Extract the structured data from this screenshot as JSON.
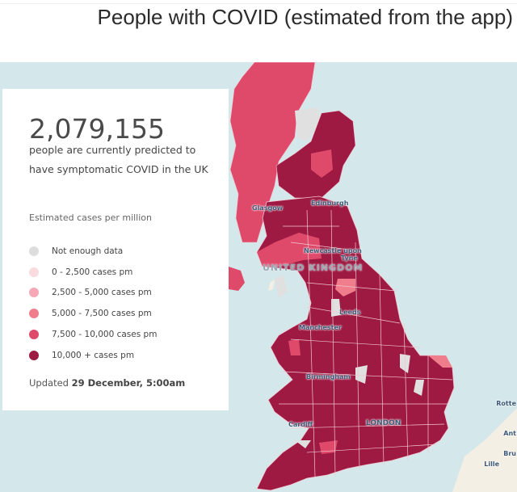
{
  "header": {
    "title": "People with COVID (estimated from the app)"
  },
  "panel": {
    "count": "2,079,155",
    "description": "people are currently predicted to have symptomatic COVID in the UK",
    "legend_title": "Estimated cases per million",
    "legend": [
      {
        "label": "Not enough data",
        "color": "#dddddd"
      },
      {
        "label": "0 - 2,500 cases pm",
        "color": "#fadbe0"
      },
      {
        "label": "2,500 - 5,000 cases pm",
        "color": "#f7a8b6"
      },
      {
        "label": "5,000 - 7,500 cases pm",
        "color": "#ef7d8c"
      },
      {
        "label": "7,500 - 10,000 cases pm",
        "color": "#df4a6b"
      },
      {
        "label": "10,000 + cases pm",
        "color": "#9e1a42"
      }
    ],
    "updated_prefix": "Updated",
    "updated_value": "29 December, 5:00am"
  },
  "map": {
    "labels": {
      "glasgow": "Glasgow",
      "edinburgh": "Edinburgh",
      "newcastle": "Newcastle upon",
      "newcastle2": "Tyne",
      "country": "UNITED KINGDOM",
      "leeds": "Leeds",
      "manchester": "Manchester",
      "birmingham": "Birmingham",
      "cardiff": "Cardiff",
      "london": "LONDON",
      "rotterdam": "Rotte",
      "antwerp": "Ant",
      "brussels": "Bru",
      "lille": "Lille"
    }
  }
}
